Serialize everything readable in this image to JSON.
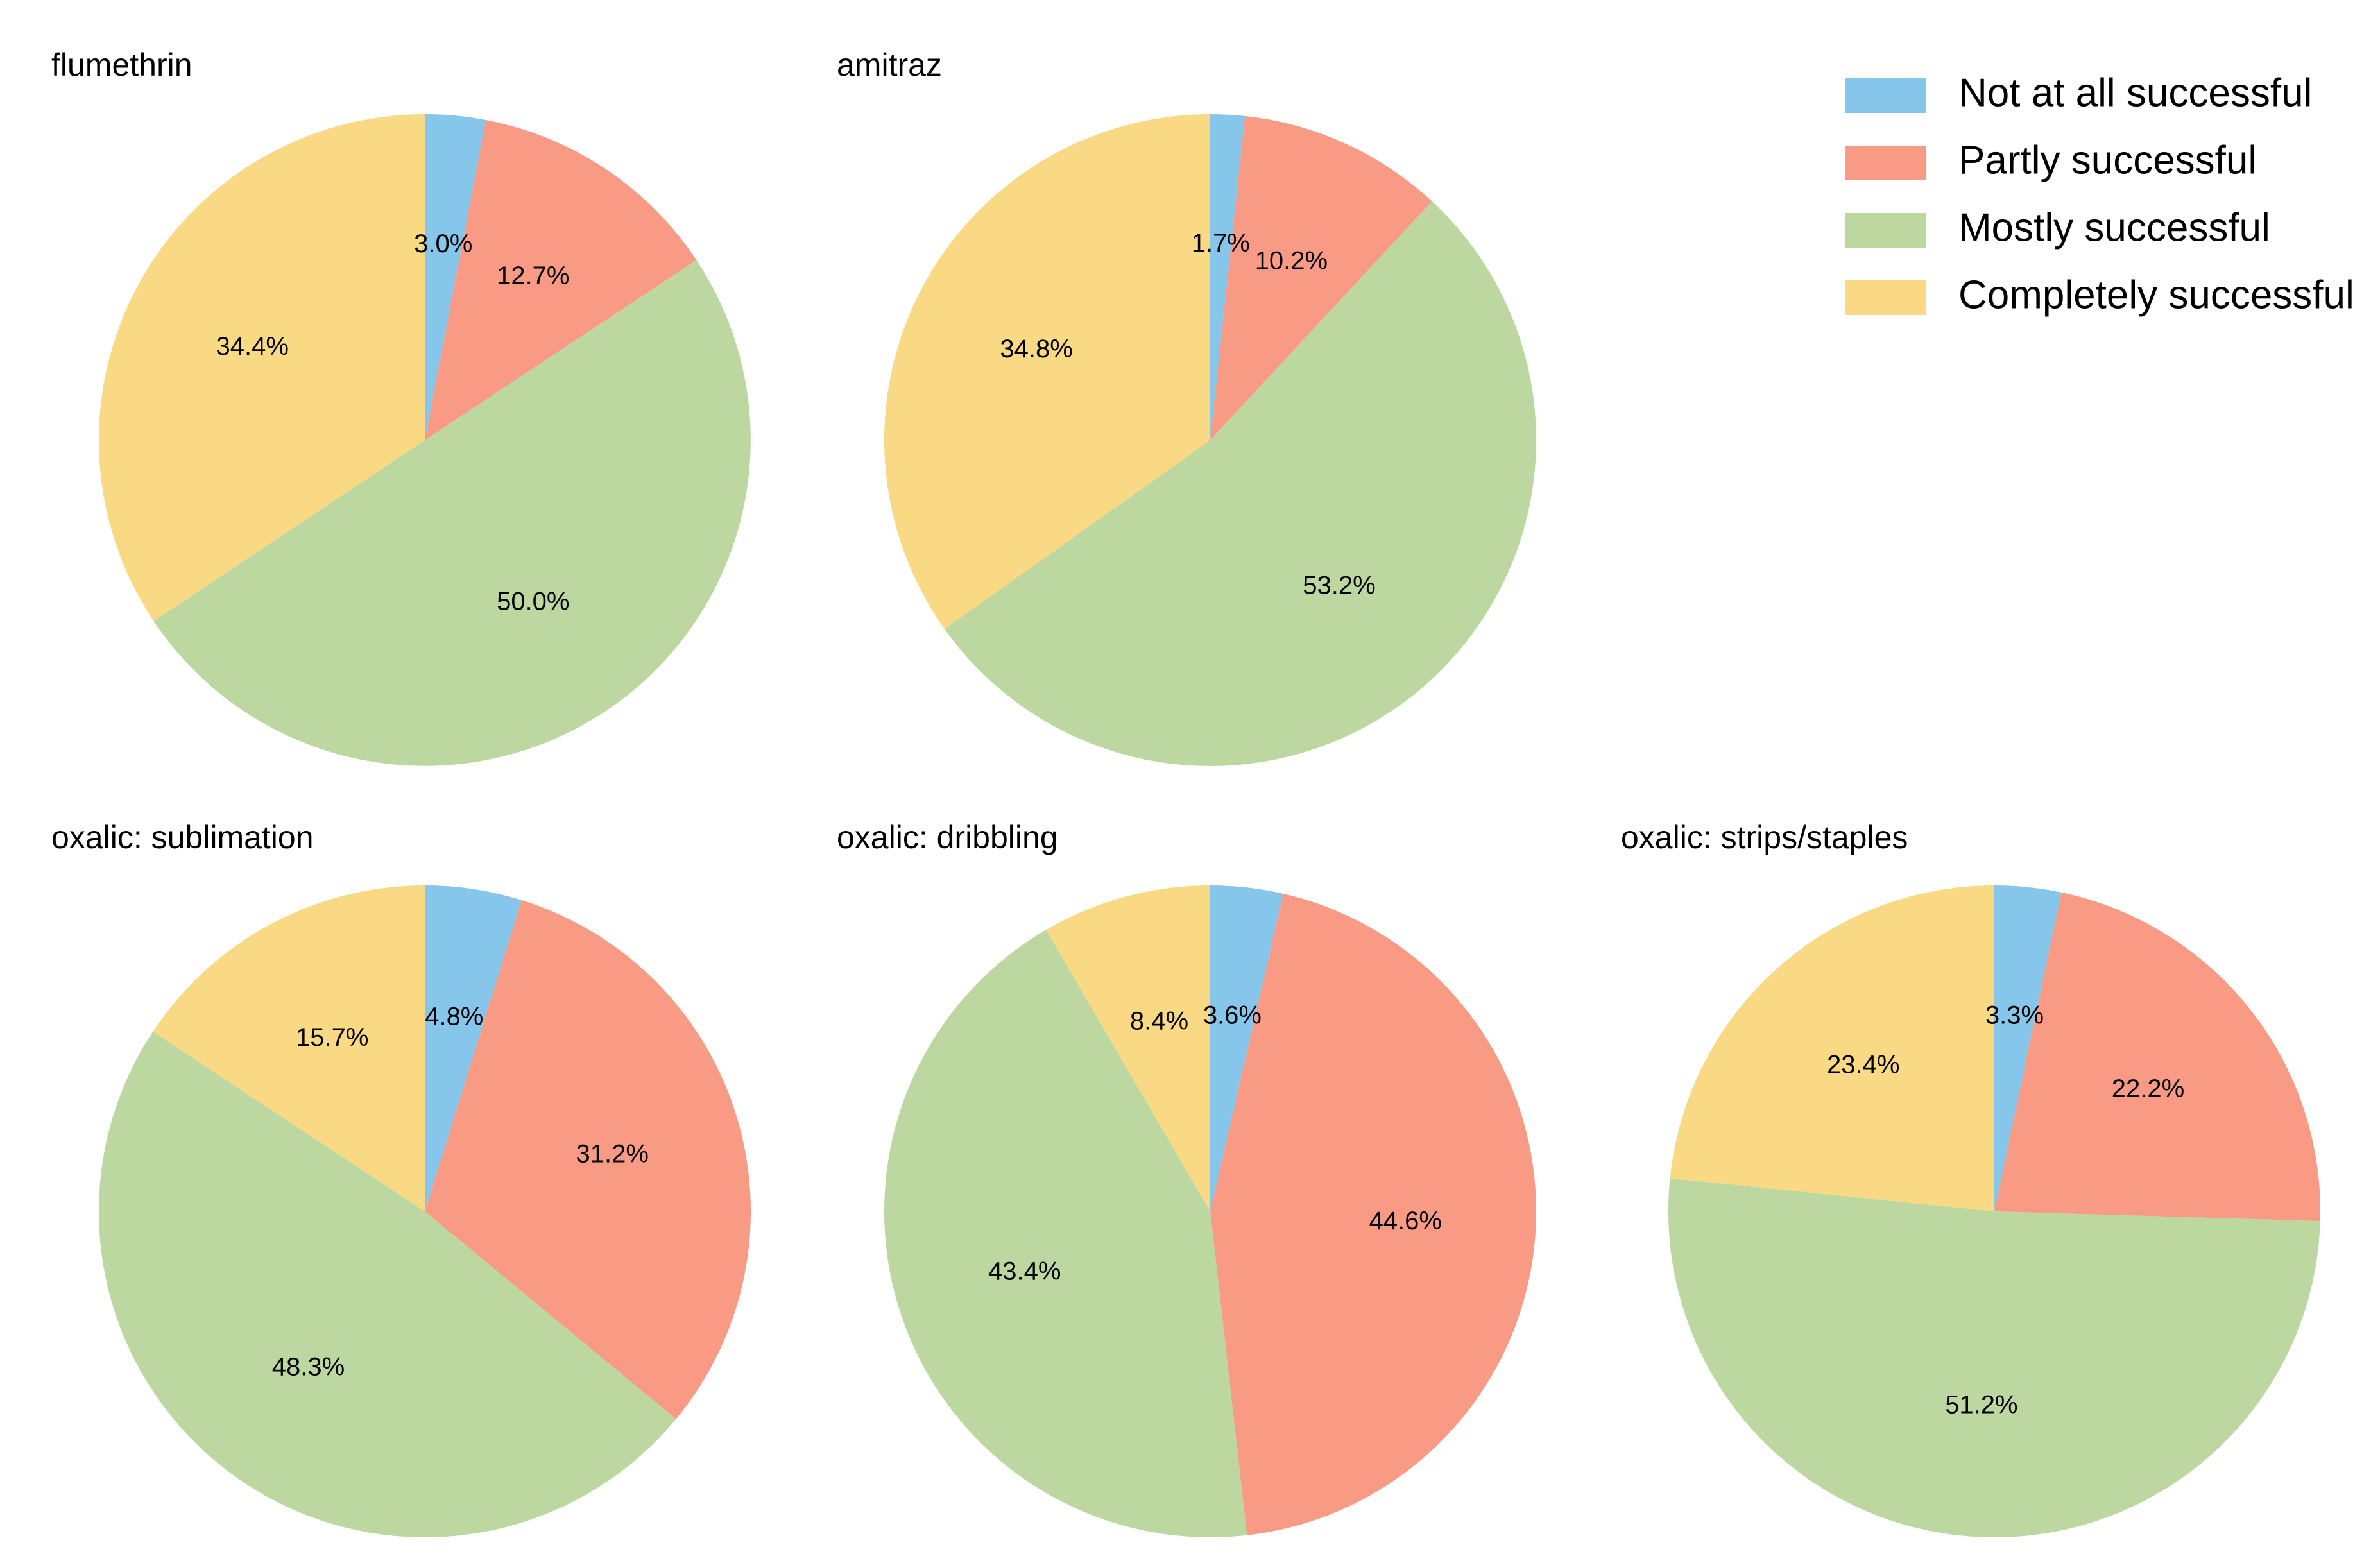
{
  "colors": {
    "Not at all successful": "#85c6ea",
    "Partly successful": "#f99a84",
    "Mostly successful": "#bcd7a0",
    "Completely successful": "#fad984"
  },
  "legend": {
    "placement": "top-right",
    "entries": [
      "Not at all successful",
      "Partly successful",
      "Mostly successful",
      "Completely successful"
    ]
  },
  "chart_data": [
    {
      "type": "pie",
      "title": "flumethrin",
      "labels": [
        "Not at all successful",
        "Partly successful",
        "Mostly successful",
        "Completely successful"
      ],
      "values": [
        3.0,
        12.7,
        50.0,
        34.4
      ],
      "value_labels": [
        "3.0%",
        "12.7%",
        "50.0%",
        "34.4%"
      ],
      "start_angle": "top",
      "direction": "clockwise"
    },
    {
      "type": "pie",
      "title": "amitraz",
      "labels": [
        "Not at all successful",
        "Partly successful",
        "Mostly successful",
        "Completely successful"
      ],
      "values": [
        1.7,
        10.2,
        53.2,
        34.8
      ],
      "value_labels": [
        "1.7%",
        "10.2%",
        "53.2%",
        "34.8%"
      ],
      "start_angle": "top",
      "direction": "clockwise"
    },
    {
      "type": "pie",
      "title": "oxalic: sublimation",
      "labels": [
        "Not at all successful",
        "Partly successful",
        "Mostly successful",
        "Completely successful"
      ],
      "values": [
        4.8,
        31.2,
        48.3,
        15.7
      ],
      "value_labels": [
        "4.8%",
        "31.2%",
        "48.3%",
        "15.7%"
      ],
      "start_angle": "top",
      "direction": "clockwise"
    },
    {
      "type": "pie",
      "title": "oxalic: dribbling",
      "labels": [
        "Not at all successful",
        "Partly successful",
        "Mostly successful",
        "Completely successful"
      ],
      "values": [
        3.6,
        44.6,
        43.4,
        8.4
      ],
      "value_labels": [
        "3.6%",
        "44.6%",
        "43.4%",
        "8.4%"
      ],
      "start_angle": "top",
      "direction": "clockwise"
    },
    {
      "type": "pie",
      "title": "oxalic: strips/staples",
      "labels": [
        "Not at all successful",
        "Partly successful",
        "Mostly successful",
        "Completely successful"
      ],
      "values": [
        3.3,
        22.2,
        51.2,
        23.4
      ],
      "value_labels": [
        "3.3%",
        "22.2%",
        "51.2%",
        "23.4%"
      ],
      "start_angle": "top",
      "direction": "clockwise"
    }
  ]
}
